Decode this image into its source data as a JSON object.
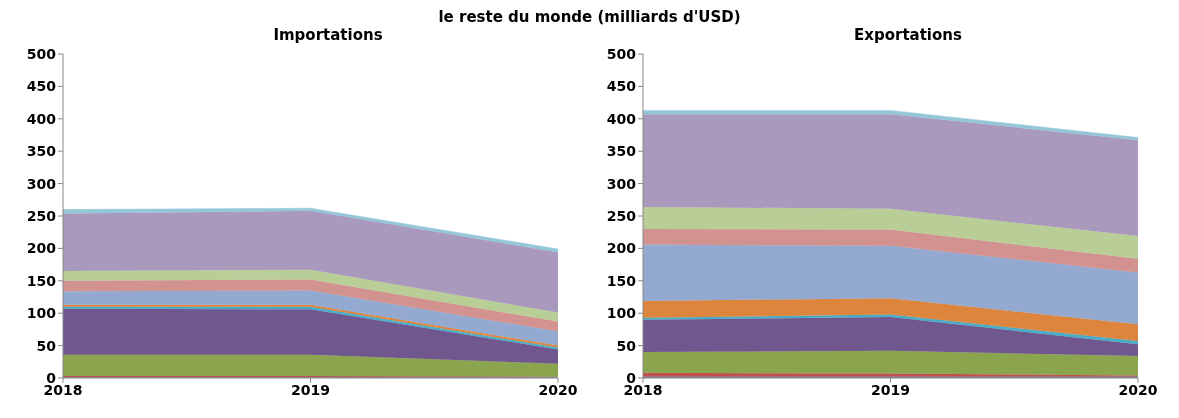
{
  "chart_data": [
    {
      "type": "area",
      "title": "Importations",
      "annotations": [
        "le reste du monde (milliards d'USD)"
      ],
      "stacked": true,
      "categories": [
        "2018",
        "2019",
        "2020"
      ],
      "ylim": [
        0,
        500
      ],
      "yticks": [
        0,
        50,
        100,
        150,
        200,
        250,
        300,
        350,
        400,
        450,
        500
      ],
      "series": [
        {
          "color": "#4f81bd",
          "values": [
            1,
            1,
            1
          ]
        },
        {
          "color": "#c0504d",
          "values": [
            2,
            2,
            1
          ]
        },
        {
          "color": "#8aa54e",
          "values": [
            33,
            33,
            20
          ]
        },
        {
          "color": "#70578e",
          "values": [
            71,
            70,
            22
          ]
        },
        {
          "color": "#4aacc6",
          "values": [
            3,
            4,
            3
          ]
        },
        {
          "color": "#dd853c",
          "values": [
            3,
            3,
            3
          ]
        },
        {
          "color": "#93a9cf",
          "values": [
            21,
            22,
            22
          ]
        },
        {
          "color": "#d29290",
          "values": [
            16,
            17,
            15
          ]
        },
        {
          "color": "#b9cd96",
          "values": [
            15,
            15,
            14
          ]
        },
        {
          "color": "#a99abd",
          "values": [
            89,
            91,
            93
          ]
        },
        {
          "color": "#93c6d7",
          "values": [
            6,
            4,
            5
          ]
        }
      ]
    },
    {
      "type": "area",
      "title": "Exportations",
      "stacked": true,
      "categories": [
        "2018",
        "2019",
        "2020"
      ],
      "ylim": [
        0,
        500
      ],
      "yticks": [
        0,
        50,
        100,
        150,
        200,
        250,
        300,
        350,
        400,
        450,
        500
      ],
      "series": [
        {
          "color": "#4f81bd",
          "values": [
            2,
            2,
            2
          ]
        },
        {
          "color": "#c0504d",
          "values": [
            6,
            5,
            2
          ]
        },
        {
          "color": "#8aa54e",
          "values": [
            32,
            35,
            30
          ]
        },
        {
          "color": "#70578e",
          "values": [
            50,
            52,
            18
          ]
        },
        {
          "color": "#4aacc6",
          "values": [
            3,
            4,
            5
          ]
        },
        {
          "color": "#dd853c",
          "values": [
            26,
            25,
            26
          ]
        },
        {
          "color": "#93a9cf",
          "values": [
            87,
            81,
            80
          ]
        },
        {
          "color": "#d29290",
          "values": [
            24,
            25,
            21
          ]
        },
        {
          "color": "#b9cd96",
          "values": [
            34,
            32,
            35
          ]
        },
        {
          "color": "#a99abd",
          "values": [
            143,
            146,
            148
          ]
        },
        {
          "color": "#93c6d7",
          "values": [
            6,
            6,
            4
          ]
        }
      ]
    }
  ]
}
